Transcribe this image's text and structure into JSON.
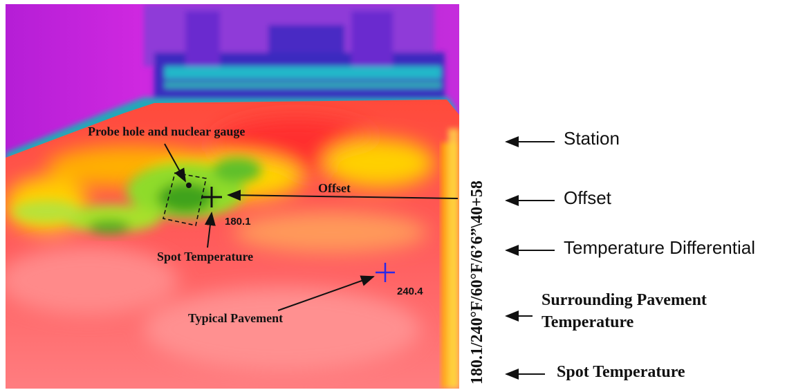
{
  "image": {
    "subject": "thermal-infrared-paver-mat",
    "palette": [
      "#7a1fbf",
      "#c21fd8",
      "#3a2db5",
      "#ff3a3a",
      "#ff7a7a",
      "#ffd000",
      "#8bdc2a",
      "#3fa31e"
    ]
  },
  "annotations": {
    "probe_hole": "Probe hole and nuclear gauge",
    "offset": "Offset",
    "spot_temperature": "Spot Temperature",
    "typical_pavement": "Typical Pavement",
    "spot_value": "180.1",
    "typical_value": "240.4"
  },
  "readout": {
    "text": "180.1/240°F/60°F/6’6”\\40+58"
  },
  "legend": {
    "station": "Station",
    "offset": "Offset",
    "temperature_differential": "Temperature Differential",
    "surrounding_line1": "Surrounding Pavement",
    "surrounding_line2": "Temperature",
    "spot_temperature": "Spot Temperature"
  }
}
